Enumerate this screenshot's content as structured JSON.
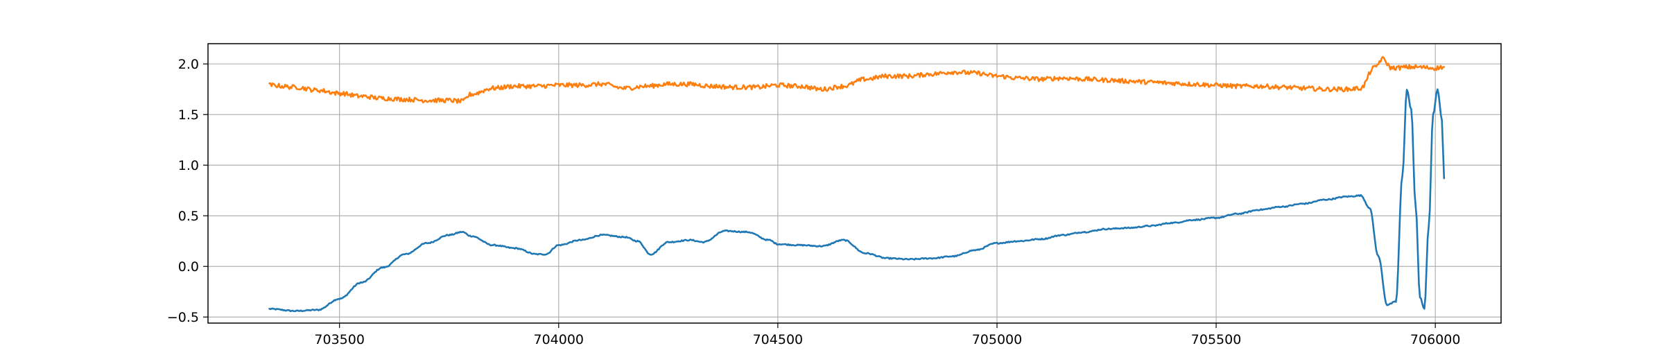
{
  "chart_data": {
    "type": "line",
    "title": "",
    "xlabel": "",
    "ylabel": "",
    "xlim": [
      703200,
      706150
    ],
    "ylim": [
      -0.56,
      2.2
    ],
    "grid": true,
    "legend": "none",
    "x_ticks": [
      703500,
      704000,
      704500,
      705000,
      705500,
      706000
    ],
    "x_tick_labels": [
      "703500",
      "704000",
      "704500",
      "705000",
      "705500",
      "706000"
    ],
    "y_ticks": [
      -0.5,
      0.0,
      0.5,
      1.0,
      1.5,
      2.0
    ],
    "y_tick_labels": [
      "−0.5",
      "0.0",
      "0.5",
      "1.0",
      "1.5",
      "2.0"
    ],
    "series": [
      {
        "color": "#1f77b4",
        "x": [
          703340,
          703400,
          703450,
          703500,
          703550,
          703600,
          703650,
          703700,
          703750,
          703780,
          703800,
          703850,
          703900,
          703950,
          703970,
          704000,
          704050,
          704100,
          704150,
          704180,
          704210,
          704250,
          704300,
          704330,
          704380,
          704430,
          704480,
          704500,
          704550,
          704600,
          704650,
          704700,
          704750,
          704800,
          704850,
          704900,
          704950,
          705000,
          705050,
          705100,
          705150,
          705200,
          705250,
          705300,
          705350,
          705400,
          705450,
          705500,
          705550,
          705600,
          705650,
          705700,
          705750,
          705800,
          705830,
          705850,
          705870,
          705890,
          705910,
          705925,
          705935,
          705945,
          705955,
          705965,
          705975,
          705985,
          705995,
          706005,
          706015,
          706020
        ],
        "y": [
          -0.42,
          -0.44,
          -0.43,
          -0.32,
          -0.16,
          -0.01,
          0.12,
          0.23,
          0.31,
          0.34,
          0.3,
          0.21,
          0.18,
          0.12,
          0.12,
          0.21,
          0.26,
          0.31,
          0.29,
          0.25,
          0.12,
          0.24,
          0.26,
          0.24,
          0.35,
          0.34,
          0.26,
          0.22,
          0.21,
          0.2,
          0.26,
          0.13,
          0.08,
          0.07,
          0.08,
          0.1,
          0.16,
          0.23,
          0.25,
          0.27,
          0.31,
          0.34,
          0.37,
          0.38,
          0.4,
          0.43,
          0.46,
          0.48,
          0.52,
          0.56,
          0.59,
          0.62,
          0.66,
          0.69,
          0.7,
          0.58,
          0.1,
          -0.38,
          -0.35,
          0.9,
          1.75,
          1.55,
          0.6,
          -0.3,
          -0.42,
          0.4,
          1.5,
          1.75,
          1.45,
          0.87
        ]
      },
      {
        "color": "#ff7f0e",
        "x": [
          703340,
          703400,
          703450,
          703500,
          703550,
          703600,
          703650,
          703700,
          703750,
          703780,
          703800,
          703850,
          703900,
          703950,
          704000,
          704050,
          704100,
          704150,
          704200,
          704250,
          704300,
          704350,
          704400,
          704450,
          704500,
          704550,
          704600,
          704650,
          704700,
          704750,
          704800,
          704850,
          704900,
          704950,
          705000,
          705050,
          705100,
          705150,
          705200,
          705250,
          705300,
          705350,
          705400,
          705450,
          705500,
          705550,
          705600,
          705650,
          705700,
          705750,
          705800,
          705830,
          705860,
          705880,
          705900,
          705950,
          706000,
          706020
        ],
        "y": [
          1.79,
          1.77,
          1.74,
          1.71,
          1.68,
          1.66,
          1.65,
          1.64,
          1.64,
          1.63,
          1.7,
          1.76,
          1.78,
          1.78,
          1.79,
          1.79,
          1.8,
          1.76,
          1.78,
          1.8,
          1.8,
          1.78,
          1.77,
          1.77,
          1.79,
          1.78,
          1.75,
          1.78,
          1.85,
          1.88,
          1.88,
          1.9,
          1.92,
          1.91,
          1.88,
          1.86,
          1.85,
          1.86,
          1.85,
          1.84,
          1.83,
          1.82,
          1.81,
          1.8,
          1.79,
          1.78,
          1.78,
          1.77,
          1.76,
          1.75,
          1.75,
          1.76,
          1.96,
          2.05,
          1.96,
          1.97,
          1.96,
          1.97
        ]
      }
    ]
  }
}
